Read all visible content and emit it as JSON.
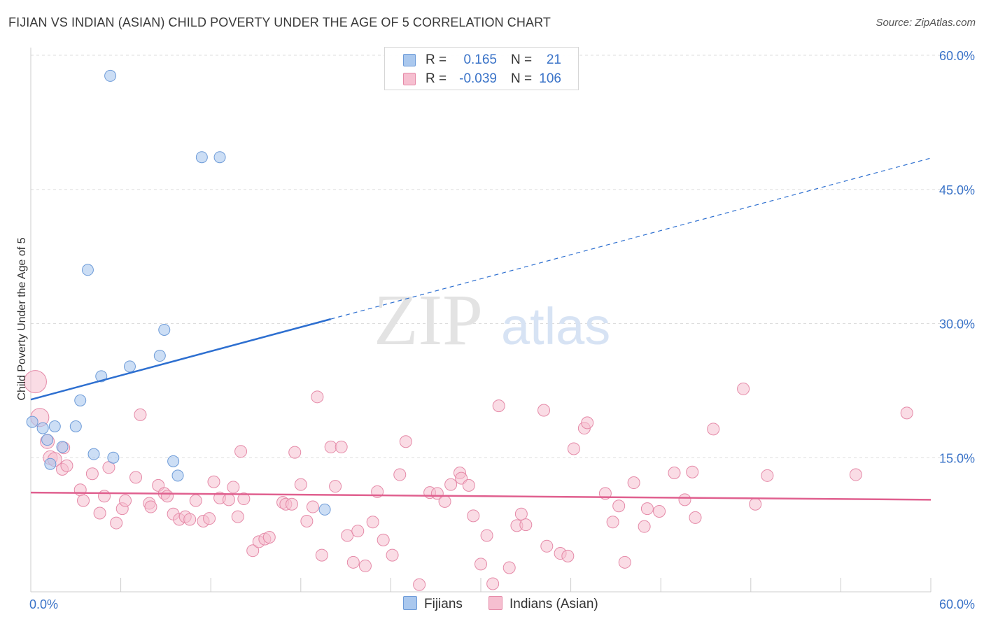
{
  "title": "FIJIAN VS INDIAN (ASIAN) CHILD POVERTY UNDER THE AGE OF 5 CORRELATION CHART",
  "source": "Source: ZipAtlas.com",
  "colors": {
    "fijians_fill": "#aac8ee",
    "fijians_stroke": "#6d9bd8",
    "fijians_line": "#2d6fd0",
    "indians_fill": "#f6bfd0",
    "indians_stroke": "#e58aa8",
    "indians_line": "#e0608f",
    "grid": "#dddddd",
    "tick_label": "#3a73c8"
  },
  "stats": {
    "fijians": {
      "r_label": "R =",
      "r_value": "0.165",
      "n_label": "N =",
      "n_value": "21"
    },
    "indians": {
      "r_label": "R =",
      "r_value": "-0.039",
      "n_label": "N =",
      "n_value": "106"
    }
  },
  "legend": {
    "fijians": "Fijians",
    "indians": "Indians (Asian)"
  },
  "watermark": {
    "zip": "ZIP",
    "atlas": "atlas"
  },
  "chart_data": {
    "type": "scatter",
    "title": "FIJIAN VS INDIAN (ASIAN) CHILD POVERTY UNDER THE AGE OF 5 CORRELATION CHART",
    "xlabel": "",
    "ylabel": "Child Poverty Under the Age of 5",
    "xlim": [
      0,
      60
    ],
    "ylim": [
      0,
      60
    ],
    "x_tick_labels": [
      "0.0%",
      "60.0%"
    ],
    "y_ticks": [
      15,
      30,
      45,
      60
    ],
    "y_tick_labels": [
      "15.0%",
      "30.0%",
      "45.0%",
      "60.0%"
    ],
    "grid": true,
    "series": [
      {
        "name": "Fijians",
        "r": 0.165,
        "n": 21,
        "trend": {
          "start": [
            0,
            21.5
          ],
          "solid_end": [
            20,
            30.5
          ],
          "dashed_end": [
            60,
            48.5
          ]
        },
        "points": [
          [
            5.3,
            57.7
          ],
          [
            11.4,
            48.6
          ],
          [
            12.6,
            48.6
          ],
          [
            3.8,
            36.0
          ],
          [
            8.9,
            29.3
          ],
          [
            8.6,
            26.4
          ],
          [
            6.6,
            25.2
          ],
          [
            4.7,
            24.1
          ],
          [
            3.3,
            21.4
          ],
          [
            0.1,
            19.0
          ],
          [
            0.8,
            18.3
          ],
          [
            1.6,
            18.5
          ],
          [
            3.0,
            18.5
          ],
          [
            1.1,
            17.0
          ],
          [
            2.1,
            16.2
          ],
          [
            4.2,
            15.4
          ],
          [
            5.5,
            15.0
          ],
          [
            1.3,
            14.3
          ],
          [
            9.5,
            14.6
          ],
          [
            9.8,
            13.0
          ],
          [
            19.6,
            9.2
          ]
        ]
      },
      {
        "name": "Indians (Asian)",
        "r": -0.039,
        "n": 106,
        "trend": {
          "start": [
            0,
            11.1
          ],
          "end": [
            60,
            10.3
          ]
        },
        "points": [
          [
            0.3,
            23.5
          ],
          [
            0.6,
            19.5
          ],
          [
            1.1,
            16.8
          ],
          [
            1.3,
            15.0
          ],
          [
            1.6,
            14.8
          ],
          [
            2.2,
            16.1
          ],
          [
            2.1,
            13.7
          ],
          [
            2.4,
            14.1
          ],
          [
            3.3,
            11.4
          ],
          [
            3.5,
            10.2
          ],
          [
            4.1,
            13.2
          ],
          [
            4.6,
            8.8
          ],
          [
            4.9,
            10.7
          ],
          [
            5.2,
            13.9
          ],
          [
            5.7,
            7.7
          ],
          [
            6.1,
            9.3
          ],
          [
            6.3,
            10.2
          ],
          [
            7.0,
            12.8
          ],
          [
            7.3,
            19.8
          ],
          [
            7.9,
            9.9
          ],
          [
            8.0,
            9.5
          ],
          [
            8.5,
            11.9
          ],
          [
            8.9,
            11.0
          ],
          [
            9.1,
            10.7
          ],
          [
            9.5,
            8.7
          ],
          [
            9.9,
            8.1
          ],
          [
            10.3,
            8.4
          ],
          [
            10.6,
            8.1
          ],
          [
            11.0,
            10.2
          ],
          [
            11.5,
            7.9
          ],
          [
            11.9,
            8.2
          ],
          [
            12.2,
            12.3
          ],
          [
            12.6,
            10.5
          ],
          [
            13.2,
            10.3
          ],
          [
            13.5,
            11.7
          ],
          [
            13.8,
            8.4
          ],
          [
            14.0,
            15.7
          ],
          [
            14.2,
            10.4
          ],
          [
            14.8,
            4.6
          ],
          [
            15.2,
            5.6
          ],
          [
            15.6,
            5.9
          ],
          [
            15.9,
            6.1
          ],
          [
            16.8,
            10.0
          ],
          [
            17.0,
            9.8
          ],
          [
            17.4,
            9.8
          ],
          [
            17.6,
            15.6
          ],
          [
            18.0,
            12.0
          ],
          [
            18.4,
            7.9
          ],
          [
            18.8,
            9.5
          ],
          [
            19.1,
            21.8
          ],
          [
            19.4,
            4.1
          ],
          [
            20.0,
            16.2
          ],
          [
            20.3,
            11.8
          ],
          [
            20.7,
            16.2
          ],
          [
            21.1,
            6.3
          ],
          [
            21.5,
            3.3
          ],
          [
            21.8,
            6.8
          ],
          [
            22.3,
            2.9
          ],
          [
            22.8,
            7.8
          ],
          [
            23.1,
            11.2
          ],
          [
            23.5,
            5.8
          ],
          [
            24.1,
            4.1
          ],
          [
            24.6,
            13.1
          ],
          [
            25.0,
            16.8
          ],
          [
            25.9,
            0.8
          ],
          [
            26.6,
            11.1
          ],
          [
            27.1,
            11.0
          ],
          [
            27.6,
            10.1
          ],
          [
            28.0,
            12.0
          ],
          [
            28.6,
            13.3
          ],
          [
            28.7,
            12.7
          ],
          [
            29.2,
            11.9
          ],
          [
            29.5,
            8.5
          ],
          [
            30.0,
            3.1
          ],
          [
            30.4,
            6.3
          ],
          [
            30.8,
            0.9
          ],
          [
            31.2,
            20.8
          ],
          [
            31.9,
            2.7
          ],
          [
            32.4,
            7.4
          ],
          [
            32.7,
            8.7
          ],
          [
            33.0,
            7.5
          ],
          [
            34.2,
            20.3
          ],
          [
            34.4,
            5.1
          ],
          [
            35.3,
            4.3
          ],
          [
            35.8,
            4.0
          ],
          [
            36.2,
            16.0
          ],
          [
            36.9,
            18.3
          ],
          [
            37.1,
            18.9
          ],
          [
            38.3,
            11.0
          ],
          [
            38.8,
            7.8
          ],
          [
            39.2,
            9.6
          ],
          [
            39.6,
            3.3
          ],
          [
            40.2,
            12.2
          ],
          [
            40.9,
            7.3
          ],
          [
            41.1,
            9.3
          ],
          [
            41.9,
            9.0
          ],
          [
            42.9,
            13.3
          ],
          [
            43.6,
            10.3
          ],
          [
            44.1,
            13.4
          ],
          [
            44.3,
            8.3
          ],
          [
            45.5,
            18.2
          ],
          [
            47.5,
            22.7
          ],
          [
            48.3,
            9.8
          ],
          [
            49.1,
            13.0
          ],
          [
            55.0,
            13.1
          ],
          [
            58.4,
            20.0
          ]
        ]
      }
    ]
  }
}
